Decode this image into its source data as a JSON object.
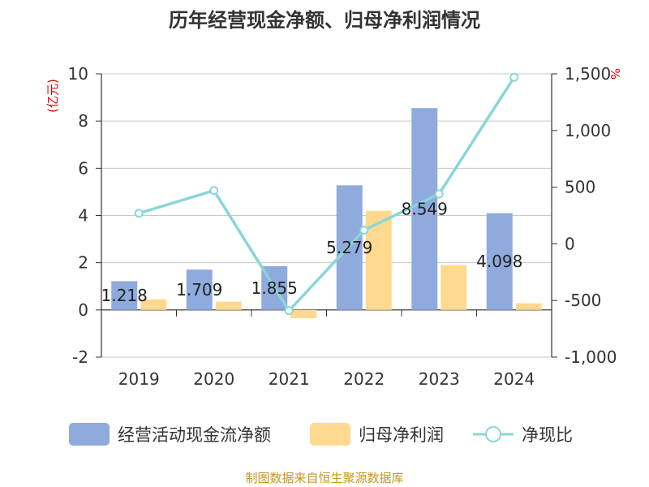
{
  "chart_data": {
    "type": "bar",
    "title": "历年经营现金净额、归母净利润情况",
    "categories": [
      "2019",
      "2020",
      "2021",
      "2022",
      "2023",
      "2024"
    ],
    "series": [
      {
        "name": "经营活动现金流净额",
        "type": "bar",
        "axis": "left",
        "color": "#8faadc",
        "values": [
          1.218,
          1.709,
          1.855,
          5.279,
          8.549,
          4.098
        ]
      },
      {
        "name": "归母净利润",
        "type": "bar",
        "axis": "left",
        "color": "#ffd990",
        "values": [
          0.45,
          0.35,
          -0.35,
          4.2,
          1.9,
          0.28
        ]
      },
      {
        "name": "净现比",
        "type": "line",
        "axis": "right",
        "color": "#8ad6d6",
        "values": [
          270,
          470,
          -590,
          120,
          440,
          1470
        ]
      }
    ],
    "data_labels": [
      "1.218",
      "1.709",
      "1.855",
      "5.279",
      "8.549",
      "4.098"
    ],
    "y_left": {
      "unit": "(亿元)",
      "min": -2,
      "max": 10,
      "ticks": [
        -2,
        0,
        2,
        4,
        6,
        8,
        10
      ]
    },
    "y_right": {
      "unit": "%",
      "min": -1000,
      "max": 1500,
      "ticks": [
        -1000,
        -500,
        0,
        500,
        1000,
        1500
      ],
      "tick_labels": [
        "-1,000",
        "-500",
        "0",
        "500",
        "1,000",
        "1,500"
      ]
    },
    "grid": true,
    "legend_position": "bottom"
  },
  "source": "制图数据来自恒生聚源数据库"
}
